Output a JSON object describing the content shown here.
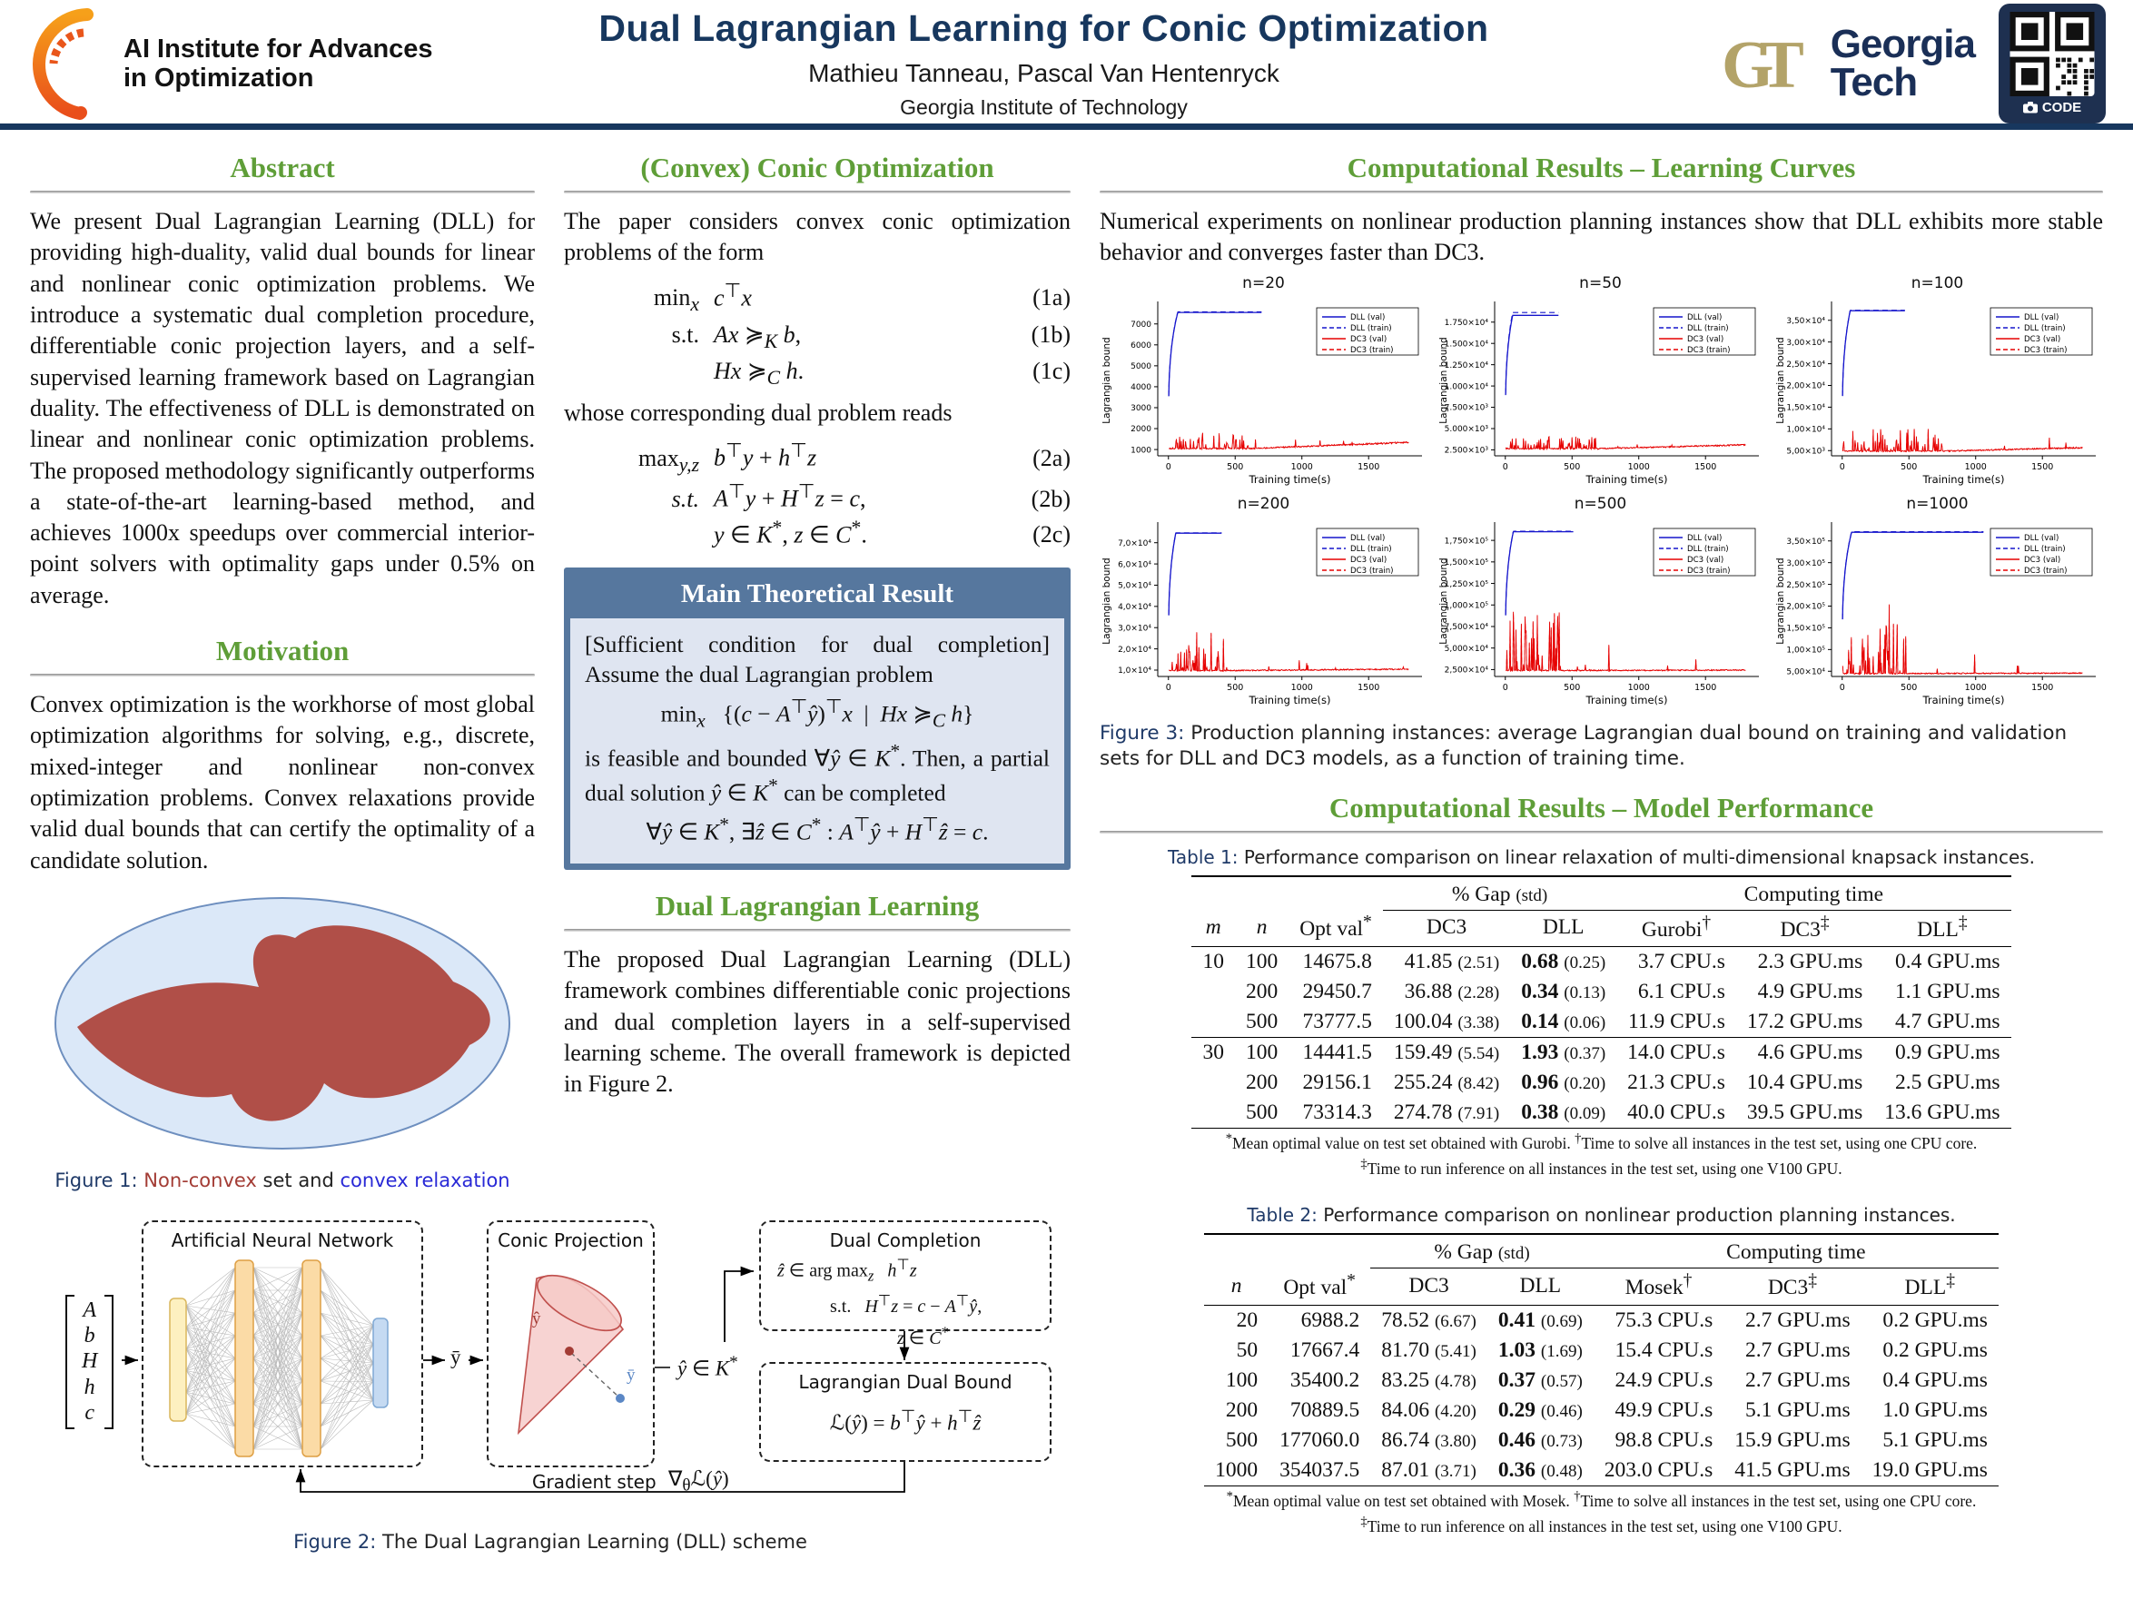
{
  "header": {
    "logo_line1": "AI Institute for Advances",
    "logo_line2": "in Optimization",
    "title": "Dual Lagrangian Learning for Conic Optimization",
    "authors": "Mathieu Tanneau, Pascal Van Hentenryck",
    "affiliation": "Georgia Institute of Technology",
    "gt_monogram": "GT",
    "gt_word1": "Georgia",
    "gt_word2": "Tech",
    "qr_label": "CODE"
  },
  "colors": {
    "navy": "#17375e",
    "green": "#5f9e38",
    "nonconvex_red": "#b04f48",
    "relaxation_blue": "#dbe8f8",
    "dll_line": "#1515cc",
    "dc3_line": "#e60000",
    "gt_gold": "#b3a369",
    "theorem_header": "#56779e",
    "theorem_body": "#dfe5f1"
  },
  "left": {
    "abstract_title": "Abstract",
    "abstract_body": "We present Dual Lagrangian Learning (DLL) for providing high-duality, valid dual bounds for linear and nonlinear conic optimization problems. We introduce a systematic dual completion procedure, differentiable conic projection layers, and a self-supervised learning framework based on Lagrangian duality. The effectiveness of DLL is demonstrated on linear and nonlinear conic optimization problems. The proposed methodology significantly outperforms a state-of-the-art learning-based method, and achieves 1000x speedups over commercial interior-point solvers with optimality gaps under 0.5% on average.",
    "motivation_title": "Motivation",
    "motivation_body": "Convex optimization is the workhorse of most global optimization algorithms for solving, e.g., discrete, mixed-integer and nonlinear non-convex optimization problems. Convex relaxations provide valid dual bounds that can certify the optimality of a candidate solution.",
    "fig1_prefix": "Figure 1:",
    "fig1_red": "Non-convex",
    "fig1_mid": "set and",
    "fig1_blue": "convex relaxation"
  },
  "middle": {
    "conic_title": "(Convex) Conic Optimization",
    "conic_intro": "The paper considers convex conic optimization problems of the form",
    "eqs1": [
      {
        "lead": "min<sub><i>x</i></sub>",
        "body": "<i>c</i><sup>⊤</sup><i>x</i>",
        "num": "(1a)"
      },
      {
        "lead": "s.t.",
        "body": "<i>Ax</i> ≽<sub><i>K</i></sub> <i>b</i>,",
        "num": "(1b)"
      },
      {
        "lead": "",
        "body": "<i>Hx</i> ≽<sub><i>C</i></sub> <i>h</i>.",
        "num": "(1c)"
      }
    ],
    "dual_intro": "whose corresponding dual problem reads",
    "eqs2": [
      {
        "lead": "max<sub><i>y,z</i></sub>",
        "body": "<i>b</i><sup>⊤</sup><i>y</i> + <i>h</i><sup>⊤</sup><i>z</i>",
        "num": "(2a)"
      },
      {
        "lead": "<i>s.t.</i>",
        "body": "<i>A</i><sup>⊤</sup><i>y</i> + <i>H</i><sup>⊤</sup><i>z</i> = <i>c</i>,",
        "num": "(2b)"
      },
      {
        "lead": "",
        "body": "<i>y</i> ∈ <i>K</i><sup>*</sup>, <i>z</i> ∈ <i>C</i><sup>*</sup>.",
        "num": "(2c)"
      }
    ],
    "thm_title": "Main Theoretical Result",
    "thm_body1": "[Sufficient condition for dual completion] Assume the dual Lagrangian problem",
    "thm_eq1": "min<sub><i>x</i></sub> &nbsp;&nbsp;{(<i>c</i> − <i>A</i><sup>⊤</sup><i>ŷ</i>)<sup>⊤</sup><i>x</i> &nbsp;|&nbsp; <i>Hx</i> ≽<sub><i>C</i></sub> <i>h</i>}",
    "thm_body2": "is feasible and bounded ∀<i>ŷ</i> ∈ <i>K</i><sup>*</sup>. Then, a partial dual solution <i>ŷ</i> ∈ <i>K</i><sup>*</sup> can be completed",
    "thm_eq2": "∀<i>ŷ</i> ∈ <i>K</i><sup>*</sup>, ∃<i>ẑ</i> ∈ <i>C</i><sup>*</sup> : <i>A</i><sup>⊤</sup><i>ŷ</i> + <i>H</i><sup>⊤</sup><i>ẑ</i> = <i>c</i>.",
    "dll_title": "Dual Lagrangian Learning",
    "dll_body": "The proposed Dual Lagrangian Learning (DLL) framework combines differentiable conic projections and dual completion layers in a self-supervised learning scheme. The overall framework is depicted in Figure 2."
  },
  "figure2": {
    "vector": [
      "A",
      "b",
      "H",
      "h",
      "c"
    ],
    "ann_label": "Artificial Neural Network",
    "ybar": "ȳ",
    "conic_label": "Conic Projection",
    "yhat_dot": "ŷ",
    "ybar_dot": "ȳ",
    "yhat_set": "<i>ŷ</i> ∈ <i>K</i><sup>*</sup>",
    "dc_title": "Dual Completion",
    "dc_l1": "<i>ẑ</i> ∈ arg max<sub><i>z</i></sub> &nbsp;&nbsp;<i>h</i><sup>⊤</sup><i>z</i>",
    "dc_l2": "<span class='ind1'>s.t. &nbsp;&nbsp;<i>H</i><sup>⊤</sup><i>z</i> = <i>c</i> − <i>A</i><sup>⊤</sup><i>ŷ</i>,</span>",
    "dc_l3": "<span class='ind2'><i>z</i> ∈ <i>C</i><sup>*</sup></span>",
    "lb_title": "Lagrangian Dual Bound",
    "lb_eq": "ℒ(<i>ŷ</i>) = <i>b</i><sup>⊤</sup><i>ŷ</i> + <i>h</i><sup>⊤</sup><i>ẑ</i>",
    "grad_label": "Gradient step",
    "grad_eq": "∇<sub>θ</sub>ℒ(<i>ŷ</i>)",
    "cap_prefix": "Figure 2:",
    "caption": "The Dual Lagrangian Learning (DLL) scheme"
  },
  "right": {
    "lc_title": "Computational Results – Learning Curves",
    "lc_body": "Numerical experiments on nonlinear production planning instances show that DLL exhibits more stable behavior and converges faster than DC3.",
    "fig3_prefix": "Figure 3:",
    "fig3_caption": "Production planning instances: average Lagrangian dual bound on training and validation sets for DLL and DC3 models, as a function of training time.",
    "mp_title": "Computational Results – Model Performance"
  },
  "chart_data": {
    "type": "line",
    "xlabel": "Training time(s)",
    "ylabel": "Lagrangian bound",
    "xticks": [
      0,
      500,
      1000,
      1500
    ],
    "xlim": [
      -80,
      1900
    ],
    "grid": false,
    "legend_position": "top-right",
    "legend": [
      {
        "label": "DLL (val)",
        "color": "#1515cc",
        "dash": false
      },
      {
        "label": "DLL (train)",
        "color": "#1515cc",
        "dash": true
      },
      {
        "label": "DC3 (val)",
        "color": "#e60000",
        "dash": false
      },
      {
        "label": "DC3 (train)",
        "color": "#e60000",
        "dash": true
      }
    ],
    "plots": [
      {
        "title": "n=20",
        "yticks": [
          "1000",
          "2000",
          "3000",
          "4000",
          "5000",
          "6000",
          "7000"
        ],
        "ytick_vals": [
          1000,
          2000,
          3000,
          4000,
          5000,
          6000,
          7000
        ],
        "ylim": [
          700,
          7900
        ],
        "dll": {
          "start": 1200,
          "plateau": 7550,
          "rise": 70,
          "end": 700,
          "train_ratio": 1.004
        },
        "dc3": {
          "base": 1050,
          "early_max": 1800,
          "early_end": 600,
          "late_max": 1600,
          "end_val": 1350
        },
        "seed": 11
      },
      {
        "title": "n=50",
        "yticks": [
          "2.500×10³",
          "5.000×10³",
          "7.500×10³",
          "1.000×10⁴",
          "1.250×10⁴",
          "1.500×10⁴",
          "1.750×10⁴"
        ],
        "ytick_vals": [
          2500,
          5000,
          7500,
          10000,
          12500,
          15000,
          17500
        ],
        "ylim": [
          1800,
          19500
        ],
        "dll": {
          "start": 2800,
          "plateau": 18300,
          "rise": 55,
          "end": 400,
          "train_ratio": 1.018
        },
        "dc3": {
          "base": 2650,
          "early_max": 4300,
          "early_end": 700,
          "late_max": 4650,
          "end_val": 3100
        },
        "seed": 22
      },
      {
        "title": "n=100",
        "yticks": [
          "5,00×10³",
          "1,00×10⁴",
          "1,50×10⁴",
          "2,00×10⁴",
          "2,50×10⁴",
          "3,00×10⁴",
          "3,50×10⁴"
        ],
        "ytick_vals": [
          5000,
          10000,
          15000,
          20000,
          25000,
          30000,
          35000
        ],
        "ylim": [
          3800,
          38500
        ],
        "dll": {
          "start": 5200,
          "plateau": 37200,
          "rise": 60,
          "end": 470,
          "train_ratio": 1.003
        },
        "dc3": {
          "base": 4900,
          "early_max": 10300,
          "early_end": 750,
          "late_max": 8600,
          "end_val": 5700
        },
        "seed": 33
      },
      {
        "title": "n=200",
        "yticks": [
          "1,0×10⁴",
          "2,0×10⁴",
          "3,0×10⁴",
          "4,0×10⁴",
          "5,0×10⁴",
          "6,0×10⁴",
          "7,0×10⁴"
        ],
        "ytick_vals": [
          10000,
          20000,
          30000,
          40000,
          50000,
          60000,
          70000
        ],
        "ylim": [
          7000,
          78000
        ],
        "dll": {
          "start": 10500,
          "plateau": 74500,
          "rise": 55,
          "end": 400,
          "train_ratio": 1.002
        },
        "dc3": {
          "base": 9800,
          "early_max": 28000,
          "early_end": 450,
          "late_max": 15500,
          "end_val": 10500
        },
        "seed": 44
      },
      {
        "title": "n=500",
        "yticks": [
          "2,500×10⁴",
          "5,000×10⁴",
          "7,500×10⁴",
          "1,000×10⁵",
          "1,250×10⁵",
          "1,500×10⁵",
          "1,750×10⁵"
        ],
        "ytick_vals": [
          25000,
          50000,
          75000,
          100000,
          125000,
          150000,
          175000
        ],
        "ylim": [
          17000,
          192000
        ],
        "dll": {
          "start": 27000,
          "plateau": 185000,
          "rise": 60,
          "end": 510,
          "train_ratio": 1.003
        },
        "dc3": {
          "base": 24000,
          "early_max": 100000,
          "early_end": 420,
          "late_max": 55000,
          "end_val": 24500
        },
        "seed": 55
      },
      {
        "title": "n=1000",
        "yticks": [
          "5,00×10⁴",
          "1,00×10⁵",
          "1,50×10⁵",
          "2,00×10⁵",
          "2,50×10⁵",
          "3,00×10⁵",
          "3,50×10⁵"
        ],
        "ytick_vals": [
          50000,
          100000,
          150000,
          200000,
          250000,
          300000,
          350000
        ],
        "ylim": [
          38000,
          385000
        ],
        "dll": {
          "start": 52000,
          "plateau": 370000,
          "rise": 70,
          "end": 1060,
          "train_ratio": 1.003
        },
        "dc3": {
          "base": 45000,
          "early_max": 265000,
          "early_end": 480,
          "late_max": 125000,
          "end_val": 46000
        },
        "seed": 66
      }
    ]
  },
  "tables": {
    "t1": {
      "cap_prefix": "Table 1:",
      "caption": "Performance comparison on linear relaxation of multi-dimensional knapsack instances.",
      "group1": "% Gap <span class='std'>(std)</span>",
      "group2": "Computing time",
      "cols": [
        "<i>m</i>",
        "<i>n</i>",
        "Opt val<sup>*</sup>",
        "DC3",
        "DLL",
        "Gurobi<sup>†</sup>",
        "DC3<sup>‡</sup>",
        "DLL<sup>‡</sup>"
      ],
      "rows": [
        {
          "m": "10",
          "n": "100",
          "opt": "14675.8",
          "dc3": "41.85",
          "dc3s": "(2.51)",
          "dll": "0.68",
          "dlls": "(0.25)",
          "c1": "3.7 CPU.s",
          "c2": "2.3 GPU.ms",
          "c3": "0.4 GPU.ms"
        },
        {
          "m": "",
          "n": "200",
          "opt": "29450.7",
          "dc3": "36.88",
          "dc3s": "(2.28)",
          "dll": "0.34",
          "dlls": "(0.13)",
          "c1": "6.1 CPU.s",
          "c2": "4.9 GPU.ms",
          "c3": "1.1 GPU.ms"
        },
        {
          "m": "",
          "n": "500",
          "opt": "73777.5",
          "dc3": "100.04",
          "dc3s": "(3.38)",
          "dll": "0.14",
          "dlls": "(0.06)",
          "c1": "11.9 CPU.s",
          "c2": "17.2 GPU.ms",
          "c3": "4.7 GPU.ms"
        },
        {
          "m": "30",
          "n": "100",
          "opt": "14441.5",
          "dc3": "159.49",
          "dc3s": "(5.54)",
          "dll": "1.93",
          "dlls": "(0.37)",
          "c1": "14.0 CPU.s",
          "c2": "4.6 GPU.ms",
          "c3": "0.9 GPU.ms"
        },
        {
          "m": "",
          "n": "200",
          "opt": "29156.1",
          "dc3": "255.24",
          "dc3s": "(8.42)",
          "dll": "0.96",
          "dlls": "(0.20)",
          "c1": "21.3 CPU.s",
          "c2": "10.4 GPU.ms",
          "c3": "2.5 GPU.ms"
        },
        {
          "m": "",
          "n": "500",
          "opt": "73314.3",
          "dc3": "274.78",
          "dc3s": "(7.91)",
          "dll": "0.38",
          "dlls": "(0.09)",
          "c1": "40.0 CPU.s",
          "c2": "39.5 GPU.ms",
          "c3": "13.6 GPU.ms"
        }
      ],
      "foot1": "<sup>*</sup>Mean optimal value on test set obtained with Gurobi. <sup>†</sup>Time to solve all instances in the test set, using one CPU core.",
      "foot2": "<sup>‡</sup>Time to run inference on all instances in the test set, using one V100 GPU."
    },
    "t2": {
      "cap_prefix": "Table 2:",
      "caption": "Performance comparison on nonlinear production planning instances.",
      "group1": "% Gap <span class='std'>(std)</span>",
      "group2": "Computing time",
      "cols": [
        "<i>n</i>",
        "Opt val<sup>*</sup>",
        "DC3",
        "DLL",
        "Mosek<sup>†</sup>",
        "DC3<sup>‡</sup>",
        "DLL<sup>‡</sup>"
      ],
      "rows": [
        {
          "n": "20",
          "opt": "6988.2",
          "dc3": "78.52",
          "dc3s": "(6.67)",
          "dll": "0.41",
          "dlls": "(0.69)",
          "c1": "75.3 CPU.s",
          "c2": "2.7 GPU.ms",
          "c3": "0.2 GPU.ms"
        },
        {
          "n": "50",
          "opt": "17667.4",
          "dc3": "81.70",
          "dc3s": "(5.41)",
          "dll": "1.03",
          "dlls": "(1.69)",
          "c1": "15.4 CPU.s",
          "c2": "2.7 GPU.ms",
          "c3": "0.2 GPU.ms"
        },
        {
          "n": "100",
          "opt": "35400.2",
          "dc3": "83.25",
          "dc3s": "(4.78)",
          "dll": "0.37",
          "dlls": "(0.57)",
          "c1": "24.9 CPU.s",
          "c2": "2.7 GPU.ms",
          "c3": "0.4 GPU.ms"
        },
        {
          "n": "200",
          "opt": "70889.5",
          "dc3": "84.06",
          "dc3s": "(4.20)",
          "dll": "0.29",
          "dlls": "(0.46)",
          "c1": "49.9 CPU.s",
          "c2": "5.1 GPU.ms",
          "c3": "1.0 GPU.ms"
        },
        {
          "n": "500",
          "opt": "177060.0",
          "dc3": "86.74",
          "dc3s": "(3.80)",
          "dll": "0.46",
          "dlls": "(0.73)",
          "c1": "98.8 CPU.s",
          "c2": "15.9 GPU.ms",
          "c3": "5.1 GPU.ms"
        },
        {
          "n": "1000",
          "opt": "354037.5",
          "dc3": "87.01",
          "dc3s": "(3.71)",
          "dll": "0.36",
          "dlls": "(0.48)",
          "c1": "203.0 CPU.s",
          "c2": "41.5 GPU.ms",
          "c3": "19.0 GPU.ms"
        }
      ],
      "foot1": "<sup>*</sup>Mean optimal value on test set obtained with Mosek. <sup>†</sup>Time to solve all instances in the test set, using one CPU core.",
      "foot2": "<sup>‡</sup>Time to run inference on all instances in the test set, using one V100 GPU."
    }
  }
}
